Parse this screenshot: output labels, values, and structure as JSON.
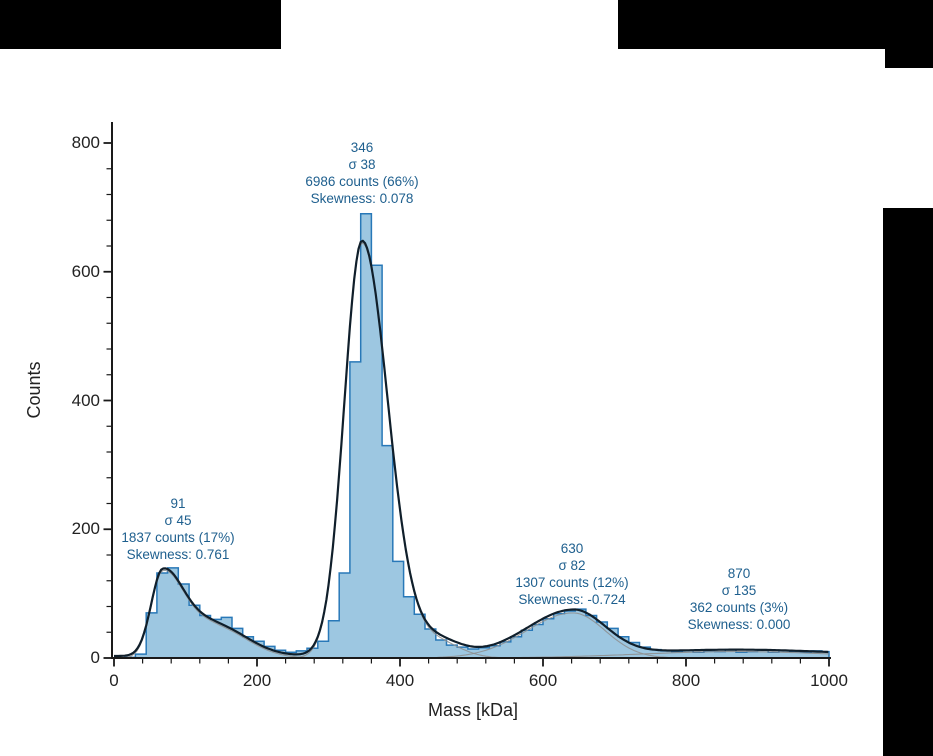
{
  "chart_data": {
    "type": "bar",
    "subtype": "mass-photometry-histogram-with-gaussian-fits",
    "title": "",
    "xlabel": "Mass [kDa]",
    "ylabel": "Counts",
    "xlim": [
      0,
      1000
    ],
    "ylim": [
      0,
      832
    ],
    "grid": false,
    "legend": "none",
    "x_ticks": [
      0,
      200,
      400,
      600,
      800,
      1000
    ],
    "y_ticks": [
      0,
      200,
      400,
      600,
      800
    ],
    "minor_tick_step_x": 40,
    "minor_tick_step_y": 40,
    "bin_start_kda": 0,
    "bin_width_kda": 15,
    "bin_counts": [
      0,
      1,
      6,
      70,
      132,
      140,
      115,
      82,
      66,
      60,
      63,
      46,
      33,
      26,
      18,
      12,
      9,
      11,
      15,
      26,
      58,
      132,
      460,
      690,
      610,
      330,
      150,
      95,
      68,
      45,
      28,
      20,
      17,
      14,
      16,
      19,
      25,
      33,
      43,
      52,
      61,
      69,
      73,
      76,
      66,
      56,
      46,
      33,
      24,
      17,
      13,
      11,
      10,
      12,
      9,
      11,
      10,
      13,
      9,
      10,
      12,
      9,
      12,
      10,
      9,
      11,
      10
    ],
    "fit_curve": {
      "baseline": 3,
      "components": [
        {
          "name": "peak-1",
          "amp": 130,
          "mu": 68,
          "sigma_left": 16,
          "sigma_right": 30
        },
        {
          "name": "peak-1-shoulder",
          "amp": 48,
          "mu": 140,
          "sigma_left": 35,
          "sigma_right": 45
        },
        {
          "name": "peak-2",
          "amp": 645,
          "mu": 347,
          "sigma_left": 25,
          "sigma_right": 36
        },
        {
          "name": "peak-2-tail",
          "amp": 26,
          "mu": 450,
          "sigma_left": 35,
          "sigma_right": 33
        },
        {
          "name": "peak-3",
          "amp": 70,
          "mu": 642,
          "sigma_left": 65,
          "sigma_right": 45
        },
        {
          "name": "peak-4",
          "amp": 10,
          "mu": 870,
          "sigma_left": 135,
          "sigma_right": 135
        }
      ],
      "component_groups": [
        [
          0,
          1
        ],
        [
          2,
          3
        ],
        [
          4
        ],
        [
          5
        ]
      ]
    },
    "peak_annotations": [
      {
        "mass": "91",
        "sigma": "σ 45",
        "counts": "1837 counts (17%)",
        "skewness": "Skewness: 0.761"
      },
      {
        "mass": "346",
        "sigma": "σ 38",
        "counts": "6986 counts (66%)",
        "skewness": "Skewness: 0.078"
      },
      {
        "mass": "630",
        "sigma": "σ 82",
        "counts": "1307 counts (12%)",
        "skewness": "Skewness: -0.724"
      },
      {
        "mass": "870",
        "sigma": "σ 135",
        "counts": "362 counts (3%)",
        "skewness": "Skewness: 0.000"
      }
    ],
    "colors": {
      "hist_fill": "#9dc7e1",
      "hist_edge": "#2878b8",
      "fit_curve": "#101f2b",
      "component_curve": "#8d8d8d",
      "annotation_text": "#1e5f8e",
      "axis": "#1a1a1a"
    }
  }
}
